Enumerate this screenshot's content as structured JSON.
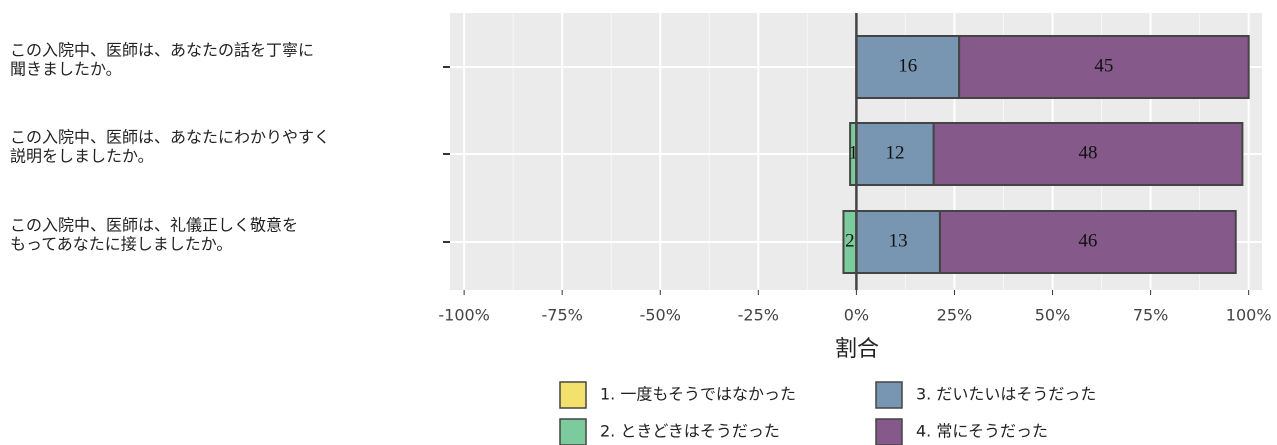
{
  "chart_data": {
    "type": "diverging_bar",
    "categories": [
      [
        "この入院中、医師は、あなたの話を丁寧に",
        "聞きましたか。"
      ],
      [
        "この入院中、医師は、あなたにわかりやすく",
        "説明をしましたか。"
      ],
      [
        "この入院中、医師は、礼儀正しく敬意を",
        "もってあなたに接しましたか。"
      ]
    ],
    "series": [
      {
        "name": "1. 一度もそうではなかった",
        "color": "#f2e26c",
        "side": "negative",
        "values": [
          null,
          null,
          null
        ],
        "counts": [
          null,
          null,
          null
        ]
      },
      {
        "name": "2. ときどきはそうだった",
        "color": "#7ccb9d",
        "side": "negative",
        "values": [
          null,
          1.6,
          3.3
        ],
        "counts": [
          null,
          1,
          2
        ]
      },
      {
        "name": "3. だいたいはそうだった",
        "color": "#7896b1",
        "side": "positive",
        "values": [
          26.2,
          19.7,
          21.3
        ],
        "counts": [
          16,
          12,
          13
        ]
      },
      {
        "name": "4. 常にそうだった",
        "color": "#855a8b",
        "side": "positive",
        "values": [
          73.8,
          78.7,
          75.4
        ],
        "counts": [
          45,
          48,
          46
        ]
      }
    ],
    "xlabel": "割合",
    "xlim": [
      -103.6,
      103.4
    ],
    "xticks": [
      {
        "value": -100,
        "label": "-100%"
      },
      {
        "value": -75,
        "label": "-75%"
      },
      {
        "value": -50,
        "label": "-50%"
      },
      {
        "value": -25,
        "label": "-25%"
      },
      {
        "value": 0,
        "label": "0%"
      },
      {
        "value": 25,
        "label": "25%"
      },
      {
        "value": 50,
        "label": "50%"
      },
      {
        "value": 75,
        "label": "75%"
      },
      {
        "value": 100,
        "label": "100%"
      }
    ],
    "minor_xticks": [
      -87.5,
      -62.5,
      -37.5,
      -12.5,
      12.5,
      37.5,
      62.5,
      87.5
    ],
    "grid": true
  }
}
